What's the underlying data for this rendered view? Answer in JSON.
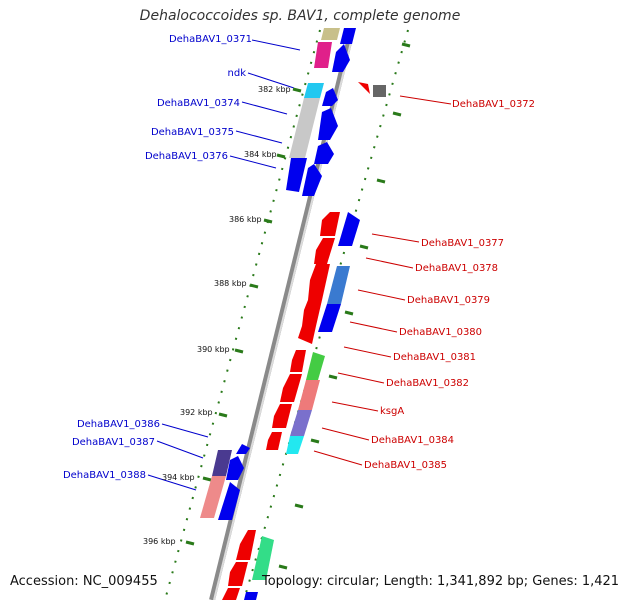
{
  "title": "Dehalococcoides sp. BAV1, complete genome",
  "accession": "Accession: NC_009455",
  "topology": "Topology: circular; Length: 1,341,892 bp; Genes: 1,421",
  "colors": {
    "forward": "#0000ee",
    "reverse": "#ee0000",
    "left_label": "#0000cc",
    "right_label": "#cc0000",
    "tick": "#2a7a1a",
    "backbone": "#8a8a8a"
  },
  "kbp_ticks": [
    "382 kbp",
    "384 kbp",
    "386 kbp",
    "388 kbp",
    "390 kbp",
    "392 kbp",
    "394 kbp",
    "396 kbp"
  ],
  "left_labels": [
    "DehaBAV1_0371",
    "ndk",
    "DehaBAV1_0374",
    "DehaBAV1_0375",
    "DehaBAV1_0376",
    "DehaBAV1_0386",
    "DehaBAV1_0387",
    "DehaBAV1_0388"
  ],
  "right_labels": [
    "DehaBAV1_0372",
    "DehaBAV1_0377",
    "DehaBAV1_0378",
    "DehaBAV1_0379",
    "DehaBAV1_0380",
    "DehaBAV1_0381",
    "DehaBAV1_0382",
    "ksgA",
    "DehaBAV1_0384",
    "DehaBAV1_0385"
  ]
}
